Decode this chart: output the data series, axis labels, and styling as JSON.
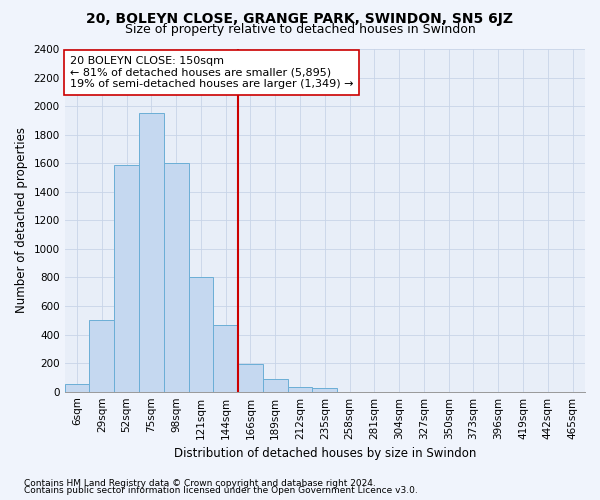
{
  "title": "20, BOLEYN CLOSE, GRANGE PARK, SWINDON, SN5 6JZ",
  "subtitle": "Size of property relative to detached houses in Swindon",
  "xlabel": "Distribution of detached houses by size in Swindon",
  "ylabel": "Number of detached properties",
  "bar_color": "#c5d8f0",
  "bar_edge_color": "#6baed6",
  "background_color": "#e8eef8",
  "fig_background": "#f0f4fc",
  "categories": [
    "6sqm",
    "29sqm",
    "52sqm",
    "75sqm",
    "98sqm",
    "121sqm",
    "144sqm",
    "166sqm",
    "189sqm",
    "212sqm",
    "235sqm",
    "258sqm",
    "281sqm",
    "304sqm",
    "327sqm",
    "350sqm",
    "373sqm",
    "396sqm",
    "419sqm",
    "442sqm",
    "465sqm"
  ],
  "values": [
    55,
    500,
    1590,
    1950,
    1600,
    800,
    470,
    195,
    90,
    35,
    25,
    0,
    0,
    0,
    0,
    0,
    0,
    0,
    0,
    0,
    0
  ],
  "vline_color": "#cc0000",
  "vline_x_index": 6.5,
  "annotation_line1": "20 BOLEYN CLOSE: 150sqm",
  "annotation_line2": "← 81% of detached houses are smaller (5,895)",
  "annotation_line3": "19% of semi-detached houses are larger (1,349) →",
  "annotation_box_facecolor": "#ffffff",
  "annotation_box_edgecolor": "#cc0000",
  "ylim": [
    0,
    2400
  ],
  "yticks": [
    0,
    200,
    400,
    600,
    800,
    1000,
    1200,
    1400,
    1600,
    1800,
    2000,
    2200,
    2400
  ],
  "footer1": "Contains HM Land Registry data © Crown copyright and database right 2024.",
  "footer2": "Contains public sector information licensed under the Open Government Licence v3.0.",
  "grid_color": "#c8d4e8",
  "title_fontsize": 10,
  "subtitle_fontsize": 9,
  "axis_label_fontsize": 8.5,
  "tick_fontsize": 7.5,
  "annotation_fontsize": 8,
  "footer_fontsize": 6.5
}
